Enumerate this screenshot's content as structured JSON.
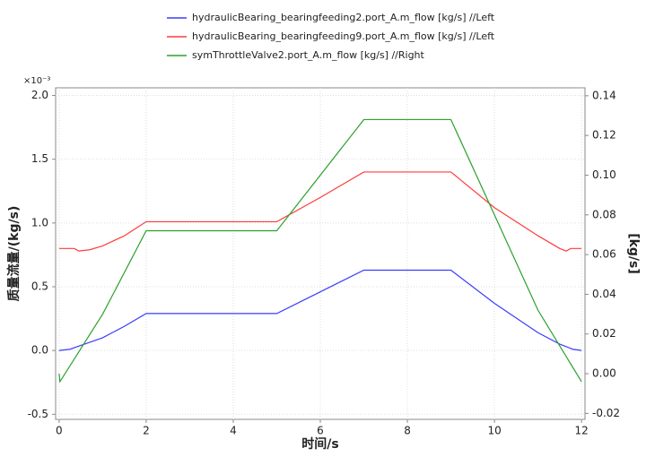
{
  "chart_data": {
    "type": "line",
    "xlabel": "时间/s",
    "ylabel": "质量流量/(kg/s)",
    "y2label": "[kg/s]",
    "y_multiplier": "×10⁻³",
    "xlim": [
      -0.08,
      12.08
    ],
    "xticks": [
      0,
      2,
      4,
      6,
      8,
      10,
      12
    ],
    "ylim": [
      -0.54,
      2.06
    ],
    "yticks": [
      {
        "value": -0.5,
        "label": "-0.5"
      },
      {
        "value": 0,
        "label": "0.0"
      },
      0.5,
      {
        "value": 1,
        "label": "1.0"
      },
      1.5,
      {
        "value": 2,
        "label": "2.0"
      }
    ],
    "y2lim": [
      -0.023,
      0.144
    ],
    "y2ticks": [
      -0.02,
      {
        "value": 0,
        "label": "0.00"
      },
      0.02,
      0.04,
      0.06,
      0.08,
      {
        "value": 0.1,
        "label": "0.10"
      },
      0.12,
      0.14
    ],
    "grid": true,
    "series": [
      {
        "name": "hydraulicBearing_bearingfeeding2.port_A.m_flow [kg/s] //Left",
        "color": "#3b3bff",
        "axis": "y",
        "x": [
          0,
          0.25,
          0.5,
          1,
          1.5,
          2,
          5,
          6,
          7,
          9,
          10,
          11,
          11.5,
          11.8,
          12
        ],
        "values": [
          0,
          0.01,
          0.04,
          0.1,
          0.19,
          0.29,
          0.29,
          0.46,
          0.63,
          0.63,
          0.37,
          0.14,
          0.05,
          0.01,
          0
        ]
      },
      {
        "name": "hydraulicBearing_bearingfeeding9.port_A.m_flow [kg/s] //Left",
        "color": "#ff3b3b",
        "axis": "y",
        "x": [
          0,
          0.35,
          0.45,
          0.7,
          1,
          1.5,
          2,
          5,
          6,
          7,
          9,
          10,
          11,
          11.5,
          11.65,
          11.75,
          12
        ],
        "values": [
          0.8,
          0.8,
          0.78,
          0.79,
          0.82,
          0.9,
          1.01,
          1.01,
          1.2,
          1.4,
          1.4,
          1.12,
          0.9,
          0.8,
          0.78,
          0.8,
          0.8
        ]
      },
      {
        "name": "symThrottleValve2.port_A.m_flow [kg/s] //Right",
        "color": "#2ca02c",
        "axis": "y2",
        "x": [
          0,
          0.02,
          1,
          2,
          5,
          7,
          9,
          10,
          11,
          12
        ],
        "values": [
          0,
          -0.004,
          0.03,
          0.072,
          0.072,
          0.128,
          0.128,
          0.08,
          0.032,
          -0.004
        ]
      }
    ]
  }
}
